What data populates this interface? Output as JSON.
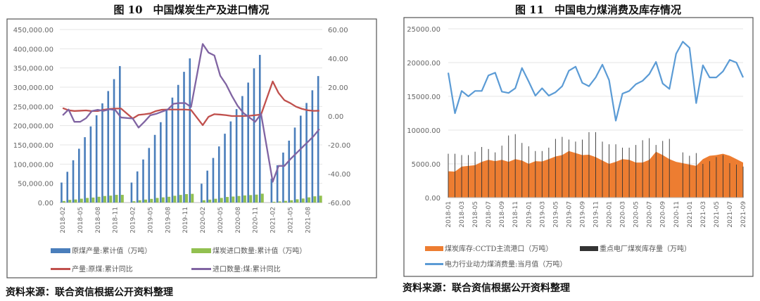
{
  "source_left": "资料来源：联合资信根据公开资料整理",
  "source_right": "资料来源：联合资信根据公开资料整理",
  "chart_data": [
    {
      "type": "bar+line",
      "title": "图 10　中国煤炭生产及进口情况",
      "left_ylim": [
        0,
        450000
      ],
      "left_ticks": [
        "450,000.00",
        "400,000.00",
        "350,000.00",
        "300,000.00",
        "250,000.00",
        "200,000.00",
        "150,000.00",
        "100,000.00",
        "50,000.00",
        "0.00"
      ],
      "right_ylim": [
        -60,
        60
      ],
      "right_ticks": [
        "60.00",
        "40.00",
        "20.00",
        "0.00",
        "-20.00",
        "-40.00",
        "-60.00"
      ],
      "grid": true,
      "legend_placement": "bottom",
      "categories": [
        "2018-02",
        "2018-03",
        "2018-04",
        "2018-05",
        "2018-06",
        "2018-07",
        "2018-08",
        "2018-09",
        "2018-10",
        "2018-11",
        "2018-12",
        "2019-01",
        "2019-02",
        "2019-03",
        "2019-04",
        "2019-05",
        "2019-06",
        "2019-07",
        "2019-08",
        "2019-09",
        "2019-10",
        "2019-11",
        "2019-12",
        "2020-01",
        "2020-02",
        "2020-03",
        "2020-04",
        "2020-05",
        "2020-06",
        "2020-07",
        "2020-08",
        "2020-09",
        "2020-10",
        "2020-11",
        "2020-12",
        "2021-01",
        "2021-02",
        "2021-03",
        "2021-04",
        "2021-05",
        "2021-06",
        "2021-07",
        "2021-08",
        "2021-09",
        "2021-10"
      ],
      "tick_labels": [
        "2018-02",
        "2018-05",
        "2018-08",
        "2018-11",
        "2019-02",
        "2019-05",
        "2019-08",
        "2019-11",
        "2020-02",
        "2020-05",
        "2020-08",
        "2020-11",
        "2021-02",
        "2021-05",
        "2021-08"
      ],
      "series": [
        {
          "name": "原煤产量:累计值（万吨）",
          "type": "bar",
          "axis": "left",
          "color": "#4a7ebb",
          "values": [
            52000,
            80000,
            110000,
            140000,
            170000,
            198000,
            227000,
            258000,
            290000,
            321000,
            355000,
            null,
            52000,
            81000,
            112000,
            142000,
            176000,
            209000,
            241000,
            273000,
            306000,
            340000,
            375000,
            null,
            49000,
            83000,
            116000,
            146000,
            179000,
            211000,
            243000,
            277000,
            312000,
            349000,
            384000,
            null,
            62000,
            97000,
            130000,
            161000,
            195000,
            226000,
            259000,
            292000,
            329000
          ]
        },
        {
          "name": "煤炭进口数量:累计值（万吨）",
          "type": "bar",
          "axis": "left",
          "color": "#92c050",
          "values": [
            4000,
            7000,
            8000,
            10000,
            12000,
            13000,
            15000,
            17000,
            18000,
            20000,
            20000,
            null,
            3400,
            6000,
            7700,
            9500,
            12000,
            13500,
            15000,
            17600,
            19800,
            22000,
            22600,
            null,
            6000,
            7600,
            9800,
            12000,
            14500,
            15600,
            17000,
            18500,
            19400,
            20600,
            23000,
            null,
            2000,
            2900,
            4400,
            6000,
            8500,
            10500,
            13500,
            16200,
            17800
          ]
        },
        {
          "name": "产量:原煤:累计同比",
          "type": "line",
          "axis": "right",
          "color": "#c0504d",
          "values": [
            5.5,
            4.0,
            3.5,
            3.7,
            3.9,
            3.4,
            3.5,
            4.4,
            4.9,
            5.2,
            5.2,
            null,
            -1.7,
            0.8,
            1.2,
            1.8,
            3.5,
            4.4,
            4.5,
            4.5,
            4.5,
            4.5,
            4.2,
            null,
            -6.3,
            -0.5,
            1.3,
            1.0,
            0.6,
            0.0,
            0.0,
            0.0,
            0.2,
            0.6,
            1.0,
            null,
            24.0,
            16.0,
            11.0,
            9.0,
            6.5,
            5.0,
            4.0,
            3.6,
            3.7
          ]
        },
        {
          "name": "进口数量:煤:累计同比",
          "type": "line",
          "axis": "right",
          "color": "#8064a2",
          "values": [
            0.5,
            4.5,
            -4.0,
            -4.0,
            -1.5,
            3.5,
            4.3,
            3.6,
            4.7,
            4.2,
            -1.0,
            null,
            -1.7,
            -8.0,
            -4.0,
            0.5,
            1.5,
            3.0,
            4.5,
            8.5,
            9.0,
            9.0,
            6.3,
            null,
            50.0,
            44.0,
            42.0,
            28.0,
            22.0,
            14.0,
            7.0,
            2.0,
            -1.0,
            -4.0,
            1.5,
            null,
            -45.6,
            -34.6,
            -34.6,
            -30.0,
            -26.0,
            -22.0,
            -18.0,
            -14.0,
            -9.0
          ]
        }
      ]
    },
    {
      "type": "area+bar+line",
      "title": "图 11　中国电力煤消费及库存情况",
      "ylim": [
        0,
        25000
      ],
      "y_ticks": [
        "25000.00",
        "20000.00",
        "15000.00",
        "10000.00",
        "5000.00",
        "0.00"
      ],
      "grid": true,
      "legend_placement": "bottom",
      "categories": [
        "2018-01",
        "2018-02",
        "2018-03",
        "2018-04",
        "2018-05",
        "2018-06",
        "2018-07",
        "2018-08",
        "2018-09",
        "2018-10",
        "2018-11",
        "2018-12",
        "2019-01",
        "2019-02",
        "2019-03",
        "2019-04",
        "2019-05",
        "2019-06",
        "2019-07",
        "2019-08",
        "2019-09",
        "2019-10",
        "2019-11",
        "2019-12",
        "2020-01",
        "2020-02",
        "2020-03",
        "2020-04",
        "2020-05",
        "2020-06",
        "2020-07",
        "2020-08",
        "2020-09",
        "2020-10",
        "2020-11",
        "2020-12",
        "2021-01",
        "2021-02",
        "2021-03",
        "2021-04",
        "2021-05",
        "2021-06",
        "2021-07",
        "2021-08",
        "2021-09"
      ],
      "tick_labels": [
        "2018-01",
        "2018-03",
        "2018-05",
        "2018-07",
        "2018-09",
        "2018-11",
        "2019-01",
        "2019-03",
        "2019-05",
        "2019-07",
        "2019-09",
        "2019-11",
        "2020-01",
        "2020-03",
        "2020-05",
        "2020-07",
        "2020-09",
        "2020-11",
        "2021-01",
        "2021-03",
        "2021-05",
        "2021-07",
        "2021-09"
      ],
      "series": [
        {
          "name": "煤炭库存:CCTD主流港口（万吨）",
          "type": "area",
          "color": "#ed7d31",
          "values": [
            3900,
            3850,
            4600,
            4700,
            4800,
            5300,
            5600,
            5400,
            5600,
            5300,
            5700,
            5500,
            5000,
            5400,
            5350,
            5700,
            6100,
            6300,
            6900,
            6600,
            6300,
            6350,
            6000,
            5500,
            5000,
            5300,
            5700,
            5600,
            5200,
            5200,
            5600,
            6800,
            6300,
            5700,
            5300,
            5100,
            4900,
            4700,
            5700,
            6200,
            6300,
            6500,
            6200,
            5700,
            5200
          ]
        },
        {
          "name": "重点电厂煤炭库存量（万吨）",
          "type": "bar",
          "color": "#333333",
          "values": [
            6500,
            6500,
            6300,
            6300,
            6800,
            7500,
            7200,
            6700,
            7700,
            9200,
            9400,
            8100,
            7600,
            6900,
            6900,
            7400,
            8700,
            9000,
            8600,
            8300,
            8600,
            9700,
            9700,
            8300,
            7900,
            7900,
            7400,
            7400,
            7800,
            8500,
            8800,
            7800,
            8400,
            8700,
            null,
            6700,
            6200,
            6600,
            5000,
            5400,
            6000,
            6300,
            5100,
            4900,
            4600
          ]
        },
        {
          "name": "电力行业动力煤消费量:当月值（万吨）",
          "type": "line",
          "color": "#5b9bd5",
          "values": [
            18500,
            12500,
            15800,
            15000,
            15800,
            15800,
            18100,
            18500,
            15700,
            15500,
            16200,
            19200,
            17200,
            15100,
            16200,
            15100,
            15600,
            16500,
            18800,
            19400,
            17000,
            16500,
            17800,
            19700,
            17400,
            11400,
            15400,
            15800,
            16800,
            17300,
            18300,
            20100,
            16900,
            16100,
            21300,
            23100,
            22200,
            14000,
            19600,
            17800,
            17800,
            18700,
            20400,
            20000,
            17800
          ]
        }
      ]
    }
  ]
}
